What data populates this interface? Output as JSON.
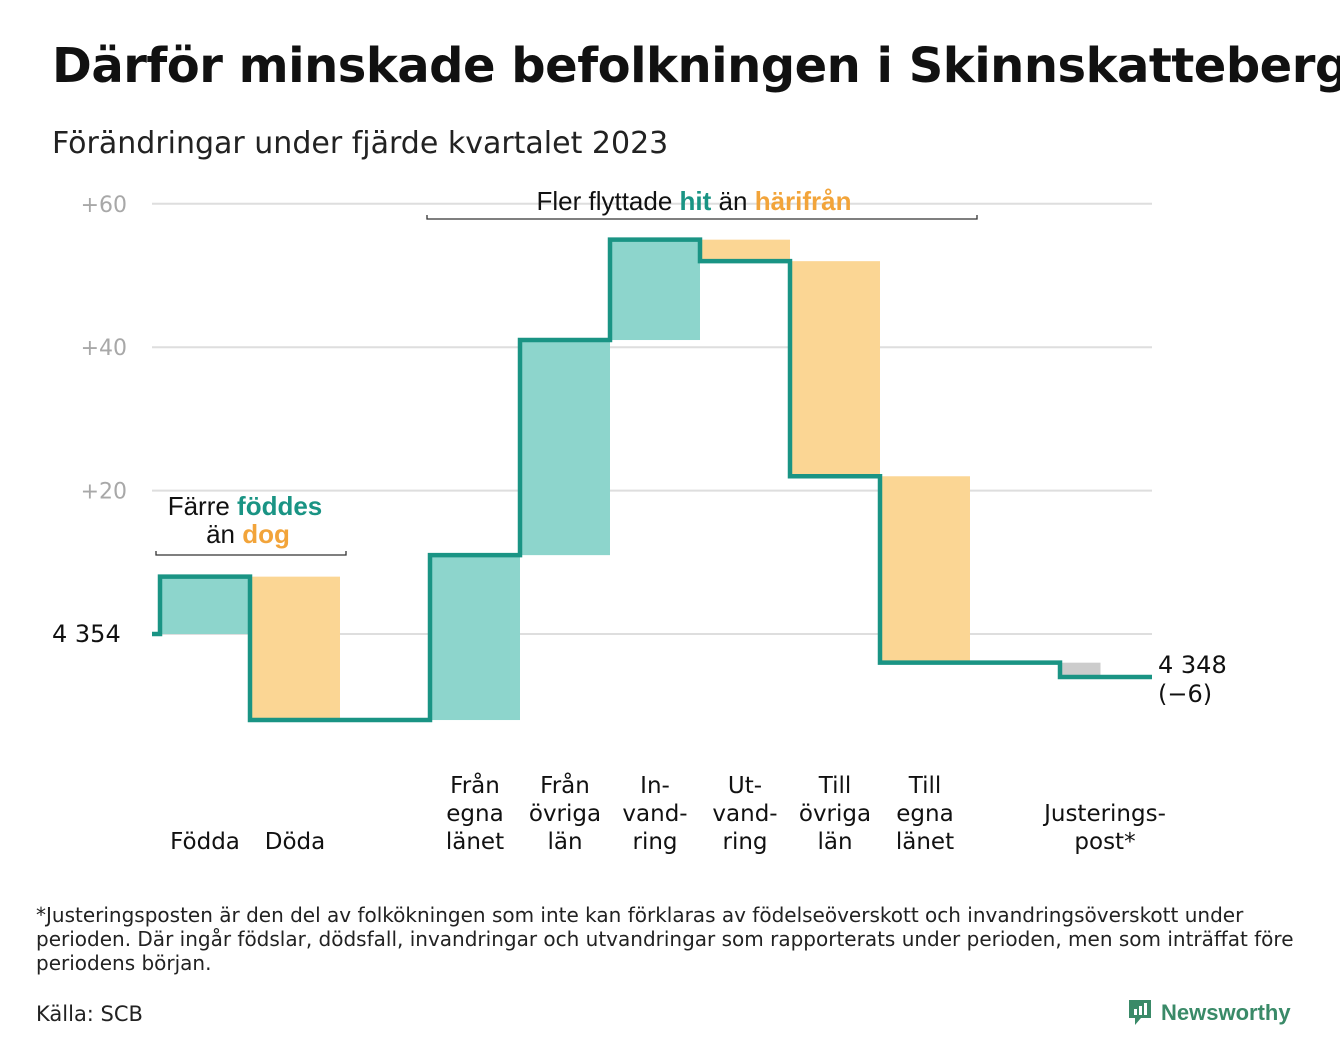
{
  "title": "Därför minskade befolkningen i Skinnskatteberg",
  "subtitle": "Förändringar under fjärde kvartalet 2023",
  "colors": {
    "in": "#8dd5cc",
    "out": "#fbd694",
    "adjust": "#cccccc",
    "line": "#1a9484",
    "teal_text": "#1a9484",
    "orange_text": "#f2a43a",
    "grid": "#dedede",
    "tick": "#a8a8a8"
  },
  "annotations": {
    "births": {
      "line1_prefix": "Färre ",
      "line1_highlight": "föddes",
      "line2_prefix": "än ",
      "line2_highlight": "dog"
    },
    "migration": {
      "prefix": "Fler flyttade ",
      "highlight_in": "hit",
      "middle": " än ",
      "highlight_out": "härifrån"
    }
  },
  "chart_data": {
    "type": "waterfall",
    "start_value": 4354,
    "start_label": "4 354",
    "end_value": 4348,
    "end_label": "4 348",
    "end_change_label": "(−6)",
    "y_ticks": [
      "+20",
      "+40",
      "+60"
    ],
    "ylim": [
      -15,
      60
    ],
    "steps": [
      {
        "label": [
          "Födda"
        ],
        "change": 8,
        "kind": "in"
      },
      {
        "label": [
          "Döda"
        ],
        "change": -20,
        "kind": "out"
      },
      {
        "label": [],
        "change": 0,
        "kind": "gap"
      },
      {
        "label": [
          "Från",
          "egna",
          "länet"
        ],
        "change": 23,
        "kind": "in"
      },
      {
        "label": [
          "Från",
          "övriga",
          "län"
        ],
        "change": 30,
        "kind": "in"
      },
      {
        "label": [
          "In-",
          "vand-",
          "ring"
        ],
        "change": 14,
        "kind": "in"
      },
      {
        "label": [
          "Ut-",
          "vand-",
          "ring"
        ],
        "change": -3,
        "kind": "out"
      },
      {
        "label": [
          "Till",
          "övriga",
          "län"
        ],
        "change": -30,
        "kind": "out"
      },
      {
        "label": [
          "Till",
          "egna",
          "länet"
        ],
        "change": -26,
        "kind": "out"
      },
      {
        "label": [],
        "change": 0,
        "kind": "gap"
      },
      {
        "label": [
          "Justerings-",
          "post*"
        ],
        "change": -2,
        "kind": "adjust"
      }
    ]
  },
  "footnote": "*Justeringsposten är den del av folkökningen som inte kan förklaras av födelseöverskott och invandringsöverskott under perioden. Där ingår födslar, dödsfall, invandringar och utvandringar som rapporterats under perioden, men som inträffat före periodens början.",
  "source": "Källa: SCB",
  "brand": "Newsworthy"
}
